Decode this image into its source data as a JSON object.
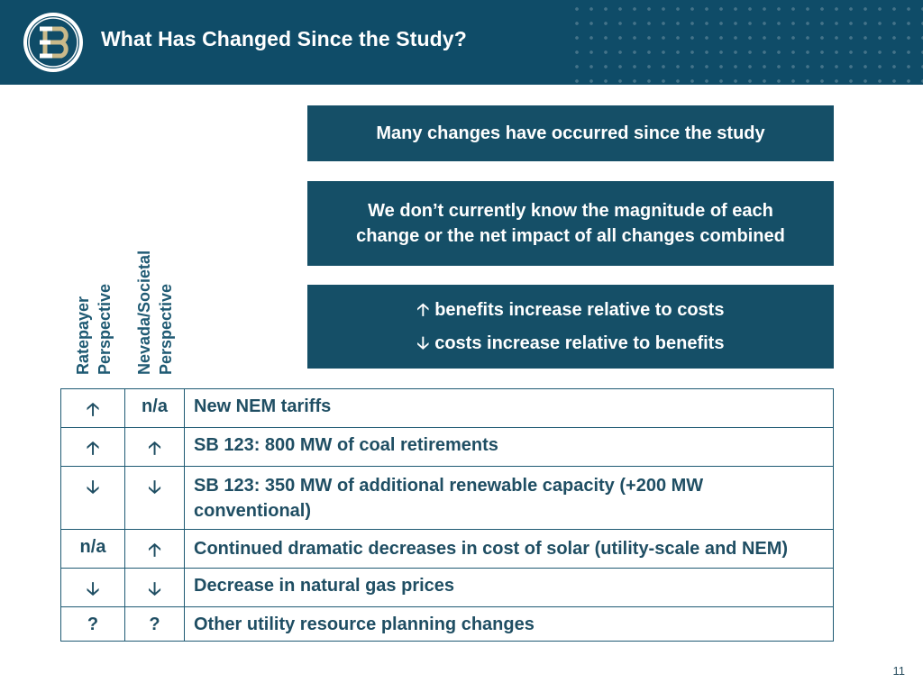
{
  "header": {
    "title": "What Has Changed Since the Study?",
    "logo_icon": "e3-logo-icon",
    "background": "#0f4c68"
  },
  "callouts": {
    "box1": "Many changes have occurred since the study",
    "box2_line1": "We don’t currently know the magnitude of each",
    "box2_line2": "change or the net impact of all changes combined",
    "legend_up_arrow": "🡡",
    "legend_up_text": "benefits increase relative to costs",
    "legend_down_arrow": "🡣",
    "legend_down_text": "costs increase relative to benefits",
    "box_color": "#154f67"
  },
  "column_labels": {
    "ratepayer_line1": "Ratepayer",
    "ratepayer_line2": "Perspective",
    "societal_line1": "Nevada/Societal",
    "societal_line2": "Perspective"
  },
  "table": {
    "rows": [
      {
        "ratepayer": "🡡",
        "societal": "n/a",
        "change": "New NEM tariffs"
      },
      {
        "ratepayer": "🡡",
        "societal": "🡡",
        "change": "SB 123: 800 MW of coal retirements"
      },
      {
        "ratepayer": "🡣",
        "societal": "🡣",
        "change": "SB 123: 350 MW of additional renewable capacity (+200 MW conventional)"
      },
      {
        "ratepayer": "n/a",
        "societal": "🡡",
        "change": "Continued dramatic decreases in cost of solar (utility-scale and NEM)"
      },
      {
        "ratepayer": "🡣",
        "societal": "🡣",
        "change": "Decrease in natural gas prices"
      },
      {
        "ratepayer": "?",
        "societal": "?",
        "change": "Other utility resource planning changes"
      }
    ]
  },
  "footer": {
    "page_number": "11"
  }
}
